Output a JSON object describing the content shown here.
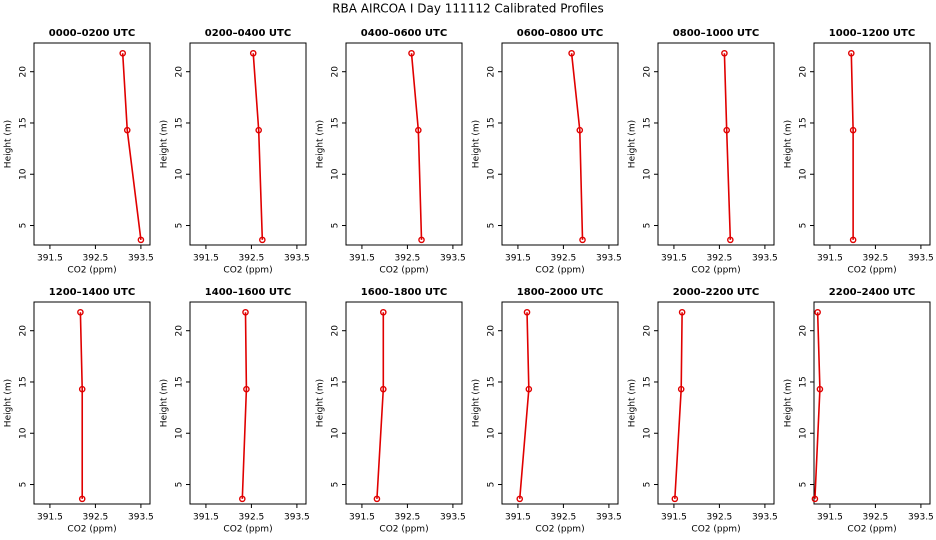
{
  "title": "RBA AIRCOA I  Day 111112  Calibrated Profiles",
  "chart_data": [
    {
      "type": "line",
      "title": "0000–0200 UTC",
      "x_label": "CO2 (ppm)",
      "y_label": "Height (m)",
      "x": [
        393.1,
        393.2,
        393.5
      ],
      "values": [
        21.8,
        14.3,
        3.6
      ],
      "color": "#e00000",
      "xlim": [
        391.15,
        393.7
      ],
      "ylim": [
        3.1,
        22.8
      ],
      "xticks": [
        391.5,
        392.5,
        393.5
      ],
      "yticks": [
        5,
        10,
        15,
        20
      ]
    },
    {
      "type": "line",
      "title": "0200–0400 UTC",
      "x_label": "CO2 (ppm)",
      "y_label": "Height (m)",
      "x": [
        392.54,
        392.66,
        392.74
      ],
      "values": [
        21.8,
        14.3,
        3.6
      ],
      "color": "#e00000",
      "xlim": [
        391.15,
        393.7
      ],
      "ylim": [
        3.1,
        22.8
      ],
      "xticks": [
        391.5,
        392.5,
        393.5
      ],
      "yticks": [
        5,
        10,
        15,
        20
      ]
    },
    {
      "type": "line",
      "title": "0400–0600 UTC",
      "x_label": "CO2 (ppm)",
      "y_label": "Height (m)",
      "x": [
        392.59,
        392.74,
        392.81
      ],
      "values": [
        21.8,
        14.3,
        3.6
      ],
      "color": "#e00000",
      "xlim": [
        391.15,
        393.7
      ],
      "ylim": [
        3.1,
        22.8
      ],
      "xticks": [
        391.5,
        392.5,
        393.5
      ],
      "yticks": [
        5,
        10,
        15,
        20
      ]
    },
    {
      "type": "line",
      "title": "0600–0800 UTC",
      "x_label": "CO2 (ppm)",
      "y_label": "Height (m)",
      "x": [
        392.68,
        392.86,
        392.92
      ],
      "values": [
        21.8,
        14.3,
        3.6
      ],
      "color": "#e00000",
      "xlim": [
        391.15,
        393.7
      ],
      "ylim": [
        3.1,
        22.8
      ],
      "xticks": [
        391.5,
        392.5,
        393.5
      ],
      "yticks": [
        5,
        10,
        15,
        20
      ]
    },
    {
      "type": "line",
      "title": "0800–1000 UTC",
      "x_label": "CO2 (ppm)",
      "y_label": "Height (m)",
      "x": [
        392.61,
        392.66,
        392.74
      ],
      "values": [
        21.8,
        14.3,
        3.6
      ],
      "color": "#e00000",
      "xlim": [
        391.15,
        393.7
      ],
      "ylim": [
        3.1,
        22.8
      ],
      "xticks": [
        391.5,
        392.5,
        393.5
      ],
      "yticks": [
        5,
        10,
        15,
        20
      ]
    },
    {
      "type": "line",
      "title": "1000–1200 UTC",
      "x_label": "CO2 (ppm)",
      "y_label": "Height (m)",
      "x": [
        391.97,
        392.01,
        392.01
      ],
      "values": [
        21.8,
        14.3,
        3.6
      ],
      "color": "#e00000",
      "xlim": [
        391.15,
        393.7
      ],
      "ylim": [
        3.1,
        22.8
      ],
      "xticks": [
        391.5,
        392.5,
        393.5
      ],
      "yticks": [
        5,
        10,
        15,
        20
      ]
    },
    {
      "type": "line",
      "title": "1200–1400 UTC",
      "x_label": "CO2 (ppm)",
      "y_label": "Height (m)",
      "x": [
        392.17,
        392.21,
        392.21
      ],
      "values": [
        21.8,
        14.3,
        3.6
      ],
      "color": "#e00000",
      "xlim": [
        391.15,
        393.7
      ],
      "ylim": [
        3.1,
        22.8
      ],
      "xticks": [
        391.5,
        392.5,
        393.5
      ],
      "yticks": [
        5,
        10,
        15,
        20
      ]
    },
    {
      "type": "line",
      "title": "1400–1600 UTC",
      "x_label": "CO2 (ppm)",
      "y_label": "Height (m)",
      "x": [
        392.37,
        392.39,
        392.3
      ],
      "values": [
        21.8,
        14.3,
        3.6
      ],
      "color": "#e00000",
      "xlim": [
        391.15,
        393.7
      ],
      "ylim": [
        3.1,
        22.8
      ],
      "xticks": [
        391.5,
        392.5,
        393.5
      ],
      "yticks": [
        5,
        10,
        15,
        20
      ]
    },
    {
      "type": "line",
      "title": "1600–1800 UTC",
      "x_label": "CO2 (ppm)",
      "y_label": "Height (m)",
      "x": [
        391.97,
        391.97,
        391.83
      ],
      "values": [
        21.8,
        14.3,
        3.6
      ],
      "color": "#e00000",
      "xlim": [
        391.15,
        393.7
      ],
      "ylim": [
        3.1,
        22.8
      ],
      "xticks": [
        391.5,
        392.5,
        393.5
      ],
      "yticks": [
        5,
        10,
        15,
        20
      ]
    },
    {
      "type": "line",
      "title": "1800–2000 UTC",
      "x_label": "CO2 (ppm)",
      "y_label": "Height (m)",
      "x": [
        391.7,
        391.74,
        391.54
      ],
      "values": [
        21.8,
        14.3,
        3.6
      ],
      "color": "#e00000",
      "xlim": [
        391.15,
        393.7
      ],
      "ylim": [
        3.1,
        22.8
      ],
      "xticks": [
        391.5,
        392.5,
        393.5
      ],
      "yticks": [
        5,
        10,
        15,
        20
      ]
    },
    {
      "type": "line",
      "title": "2000–2200 UTC",
      "x_label": "CO2 (ppm)",
      "y_label": "Height (m)",
      "x": [
        391.68,
        391.66,
        391.52
      ],
      "values": [
        21.8,
        14.3,
        3.6
      ],
      "color": "#e00000",
      "xlim": [
        391.15,
        393.7
      ],
      "ylim": [
        3.1,
        22.8
      ],
      "xticks": [
        391.5,
        392.5,
        393.5
      ],
      "yticks": [
        5,
        10,
        15,
        20
      ]
    },
    {
      "type": "line",
      "title": "2200–2400 UTC",
      "x_label": "CO2 (ppm)",
      "y_label": "Height (m)",
      "x": [
        391.23,
        391.28,
        391.17
      ],
      "values": [
        21.8,
        14.3,
        3.6
      ],
      "color": "#e00000",
      "xlim": [
        391.15,
        393.7
      ],
      "ylim": [
        3.1,
        22.8
      ],
      "xticks": [
        391.5,
        392.5,
        393.5
      ],
      "yticks": [
        5,
        10,
        15,
        20
      ]
    }
  ]
}
